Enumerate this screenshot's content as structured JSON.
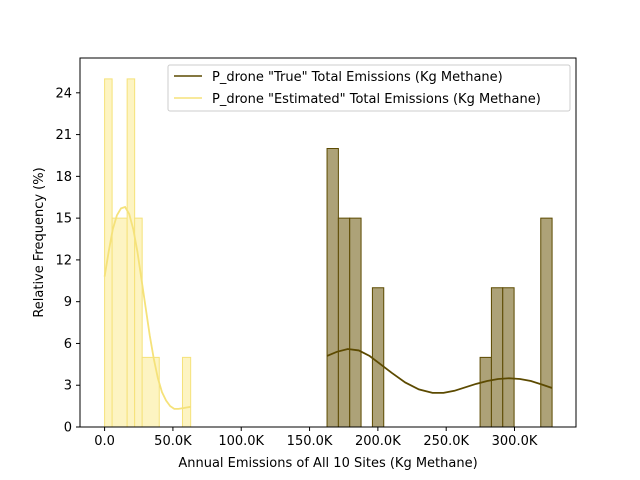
{
  "chart_data": {
    "type": "histogram",
    "xlabel": "Annual Emissions of All 10 Sites (Kg Methane)",
    "ylabel": "Relative Frequency (%)",
    "xlim": [
      -18000,
      345000
    ],
    "ylim": [
      0,
      26.5
    ],
    "xticks": [
      0,
      50000,
      100000,
      150000,
      200000,
      250000,
      300000
    ],
    "xtick_labels": [
      "0.0",
      "50.0K",
      "100.0K",
      "150.0K",
      "200.0K",
      "250.0K",
      "300.0K"
    ],
    "yticks": [
      0,
      3,
      6,
      9,
      12,
      15,
      18,
      21,
      24
    ],
    "ytick_labels": [
      "0",
      "3",
      "6",
      "9",
      "12",
      "15",
      "18",
      "21",
      "24"
    ],
    "grid": false,
    "legend_position": "upper right",
    "series": [
      {
        "name": "P_drone \"True\" Total Emissions (Kg Methane)",
        "line_color": "#5c4a00",
        "fill_color": "#ada278",
        "bins": [
          {
            "x0": 162800,
            "x1": 171100,
            "value": 20
          },
          {
            "x0": 171100,
            "x1": 179400,
            "value": 15
          },
          {
            "x0": 179400,
            "x1": 187700,
            "value": 15
          },
          {
            "x0": 196000,
            "x1": 204300,
            "value": 10
          },
          {
            "x0": 274800,
            "x1": 283100,
            "value": 5
          },
          {
            "x0": 283100,
            "x1": 291400,
            "value": 10
          },
          {
            "x0": 291400,
            "x1": 299700,
            "value": 10
          },
          {
            "x0": 319200,
            "x1": 327500,
            "value": 15
          }
        ],
        "kde": {
          "x": [
            162800,
            170000,
            178000,
            186000,
            194000,
            202000,
            210000,
            220000,
            230000,
            240000,
            248000,
            256000,
            264000,
            272000,
            280000,
            288000,
            296000,
            304000,
            312000,
            320000,
            327500
          ],
          "y": [
            5.1,
            5.4,
            5.6,
            5.5,
            5.1,
            4.5,
            3.9,
            3.2,
            2.7,
            2.45,
            2.45,
            2.6,
            2.85,
            3.1,
            3.3,
            3.45,
            3.5,
            3.45,
            3.3,
            3.05,
            2.8
          ]
        }
      },
      {
        "name": "P_drone \"Estimated\" Total Emissions (Kg Methane)",
        "line_color": "#f5e27a",
        "fill_color": "#fdf4c2",
        "bins": [
          {
            "x0": 0,
            "x1": 5500,
            "value": 25
          },
          {
            "x0": 5500,
            "x1": 16500,
            "value": 15
          },
          {
            "x0": 16500,
            "x1": 22000,
            "value": 25
          },
          {
            "x0": 22000,
            "x1": 27500,
            "value": 15
          },
          {
            "x0": 27500,
            "x1": 40000,
            "value": 5
          },
          {
            "x0": 57000,
            "x1": 63000,
            "value": 5
          }
        ],
        "kde": {
          "x": [
            0,
            3000,
            6000,
            9000,
            12000,
            15000,
            18000,
            21000,
            24000,
            27000,
            30000,
            33000,
            36000,
            39000,
            42000,
            45000,
            48000,
            51000,
            54000,
            57000,
            60000,
            63000
          ],
          "y": [
            10.8,
            12.6,
            14.2,
            15.2,
            15.7,
            15.8,
            15.3,
            14.2,
            12.6,
            10.6,
            8.6,
            6.6,
            4.9,
            3.5,
            2.5,
            1.9,
            1.5,
            1.3,
            1.3,
            1.35,
            1.4,
            1.45
          ]
        }
      }
    ]
  }
}
